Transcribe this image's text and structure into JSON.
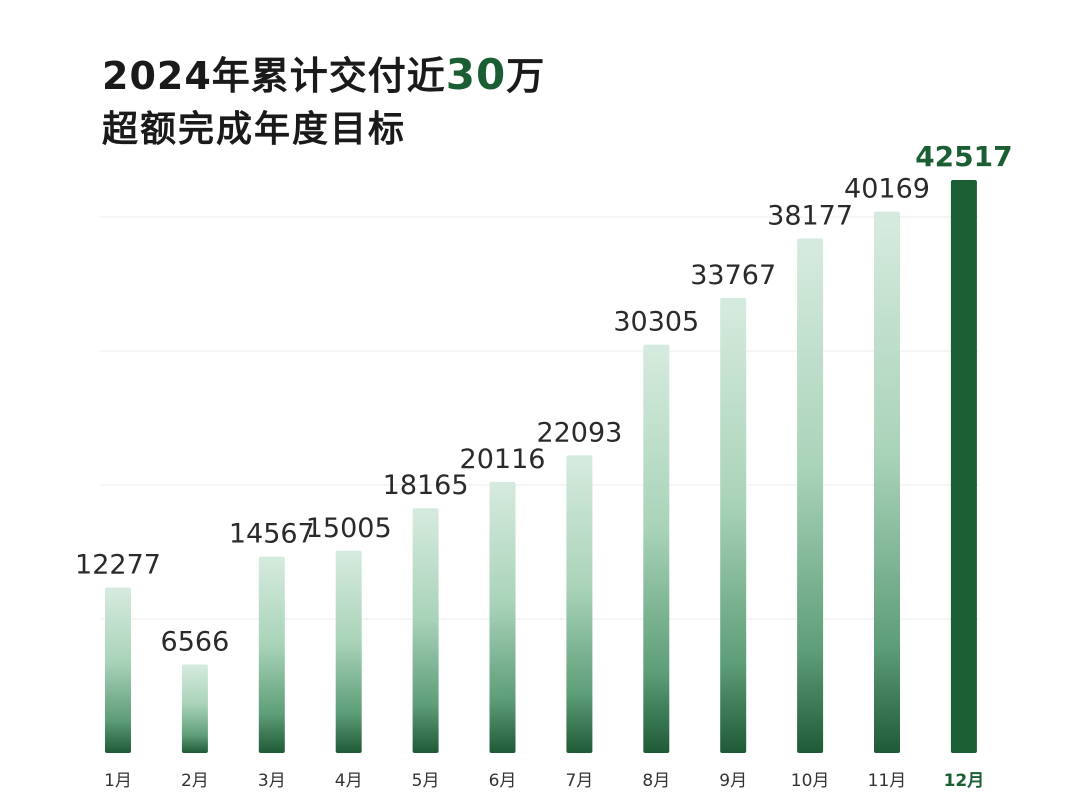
{
  "title": {
    "line1_prefix": "2024年累计交付近",
    "line1_highlight": "30",
    "line1_suffix": "万",
    "line2": "超额完成年度目标"
  },
  "colors": {
    "accent": "#1b5e33",
    "bar_light": "#d6ebdf",
    "bar_dark": "#1f5a37",
    "text": "#1a1a1a"
  },
  "chart_data": {
    "type": "bar",
    "categories": [
      "1月",
      "2月",
      "3月",
      "4月",
      "5月",
      "6月",
      "7月",
      "8月",
      "9月",
      "10月",
      "11月",
      "12月"
    ],
    "values": [
      12277,
      6566,
      14567,
      15005,
      18165,
      20116,
      22093,
      30305,
      33767,
      38177,
      40169,
      42517
    ],
    "highlight_index": 11,
    "ylim": [
      0,
      42517
    ],
    "grid": true,
    "data_labels": true
  }
}
